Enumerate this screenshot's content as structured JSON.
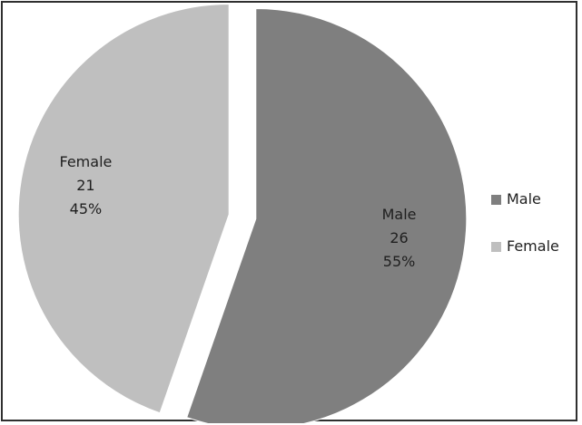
{
  "chart_data": {
    "type": "pie",
    "series": [
      {
        "name": "Male",
        "value": 26,
        "percent": "55%",
        "color": "#7f7f7f"
      },
      {
        "name": "Female",
        "value": 21,
        "percent": "45%",
        "color": "#bfbfbf"
      }
    ],
    "legend": {
      "position": "right",
      "items": [
        "Male",
        "Female"
      ]
    },
    "exploded": true,
    "start_direction": "top",
    "direction": "clockwise"
  }
}
